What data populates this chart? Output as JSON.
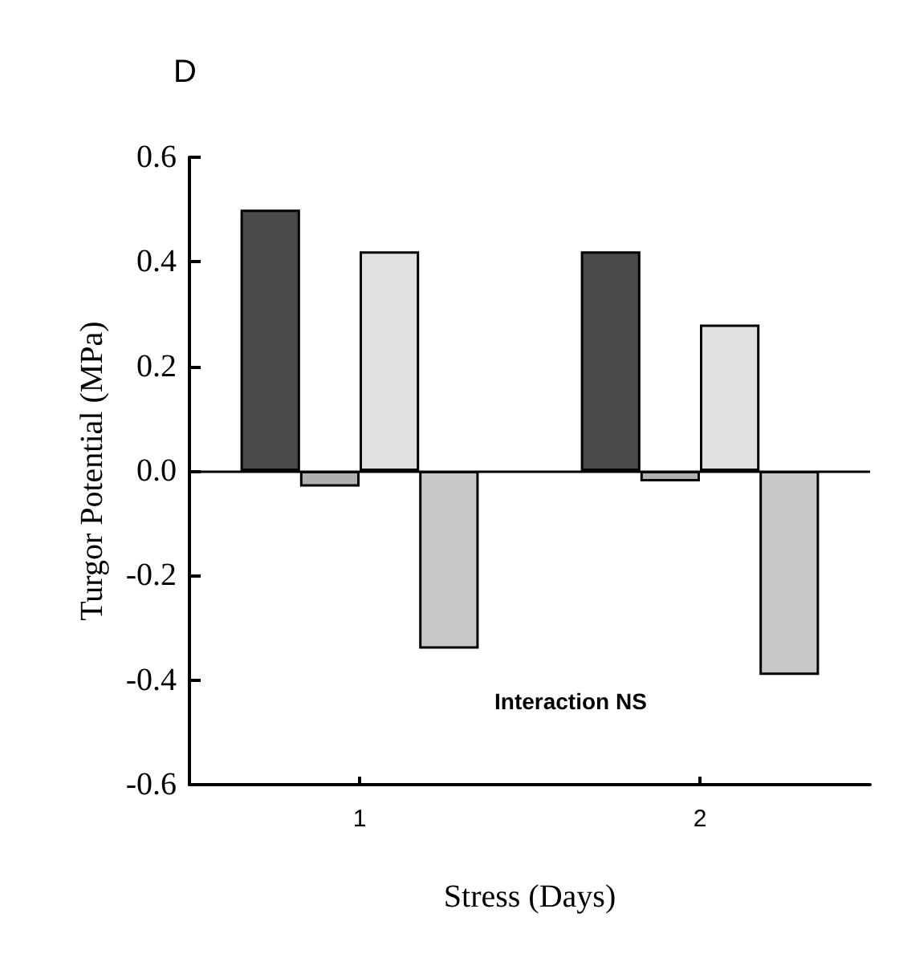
{
  "chart_data": {
    "type": "bar",
    "title": "D",
    "xlabel": "Stress (Days)",
    "ylabel": "Turgor Potential (MPa)",
    "categories": [
      "1",
      "2"
    ],
    "series": [
      {
        "color": "#4a4a4a",
        "values": [
          0.5,
          0.42
        ]
      },
      {
        "color": "#b0b0b0",
        "values": [
          -0.03,
          -0.02
        ]
      },
      {
        "color": "#e0e0e0",
        "values": [
          0.42,
          0.28
        ]
      },
      {
        "color": "#c8c8c8",
        "values": [
          -0.34,
          -0.39
        ]
      }
    ],
    "ylim": [
      -0.6,
      0.6
    ],
    "yticks": [
      -0.6,
      -0.4,
      -0.2,
      {
        "value": 0,
        "label": "0.0"
      },
      0.2,
      0.4,
      0.6
    ],
    "ref_lines": [
      {
        "axis": "y",
        "value": 0,
        "color": "#000000"
      }
    ],
    "annotations": [
      "Interaction NS"
    ],
    "grid": false
  }
}
